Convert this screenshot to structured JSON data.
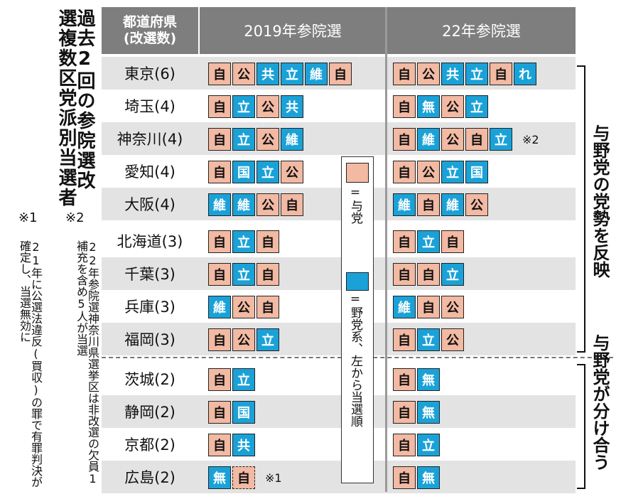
{
  "title": "過去2回の参院選改選複数区党派別当選者",
  "notes": {
    "n2_mark": "※2",
    "n2_text": "22年参院選神奈川県選挙区は非改選の欠員1補充を含め5人が当選",
    "n1_mark": "※1",
    "n1_text": "21年に公選法違反(買収)の罪で有罪判決が確定し、当選無効に"
  },
  "header": {
    "pref_line1": "都道府県",
    "pref_line2": "(改選数)",
    "col_2019": "2019年参院選",
    "col_2022": "22年参院選"
  },
  "legend": {
    "ruling_text": "=与党",
    "opposition_text": "=野党系、左から当選順"
  },
  "side_labels": {
    "group1": "与野党の党勢を反映",
    "group2": "与野党が分け合う"
  },
  "colors": {
    "ruling": "#f2b9a3",
    "opposition": "#1aa2d8",
    "header": "#7e7e7e"
  },
  "rows": [
    {
      "pref": "東京(6)",
      "r2019": [
        [
          "自",
          "r"
        ],
        [
          "公",
          "r"
        ],
        [
          "共",
          "o"
        ],
        [
          "立",
          "o"
        ],
        [
          "維",
          "o"
        ],
        [
          "自",
          "r"
        ]
      ],
      "r2022": [
        [
          "自",
          "r"
        ],
        [
          "公",
          "r"
        ],
        [
          "共",
          "o"
        ],
        [
          "立",
          "o"
        ],
        [
          "自",
          "r"
        ],
        [
          "れ",
          "o"
        ]
      ],
      "note": ""
    },
    {
      "pref": "埼玉(4)",
      "r2019": [
        [
          "自",
          "r"
        ],
        [
          "立",
          "o"
        ],
        [
          "公",
          "r"
        ],
        [
          "共",
          "o"
        ]
      ],
      "r2022": [
        [
          "自",
          "r"
        ],
        [
          "無",
          "o"
        ],
        [
          "公",
          "r"
        ],
        [
          "立",
          "o"
        ]
      ],
      "note": ""
    },
    {
      "pref": "神奈川(4)",
      "r2019": [
        [
          "自",
          "r"
        ],
        [
          "立",
          "o"
        ],
        [
          "公",
          "r"
        ],
        [
          "維",
          "o"
        ]
      ],
      "r2022": [
        [
          "自",
          "r"
        ],
        [
          "維",
          "o"
        ],
        [
          "公",
          "r"
        ],
        [
          "自",
          "r"
        ],
        [
          "立",
          "o"
        ]
      ],
      "note": "※2"
    },
    {
      "pref": "愛知(4)",
      "r2019": [
        [
          "自",
          "r"
        ],
        [
          "国",
          "o"
        ],
        [
          "立",
          "o"
        ],
        [
          "公",
          "r"
        ]
      ],
      "r2022": [
        [
          "自",
          "r"
        ],
        [
          "公",
          "r"
        ],
        [
          "立",
          "o"
        ],
        [
          "国",
          "o"
        ]
      ],
      "note": ""
    },
    {
      "pref": "大阪(4)",
      "r2019": [
        [
          "維",
          "o"
        ],
        [
          "維",
          "o"
        ],
        [
          "公",
          "r"
        ],
        [
          "自",
          "r"
        ]
      ],
      "r2022": [
        [
          "維",
          "o"
        ],
        [
          "自",
          "r"
        ],
        [
          "維",
          "o"
        ],
        [
          "公",
          "r"
        ]
      ],
      "note": ""
    },
    {
      "pref": "北海道(3)",
      "r2019": [
        [
          "自",
          "r"
        ],
        [
          "立",
          "o"
        ],
        [
          "自",
          "r"
        ]
      ],
      "r2022": [
        [
          "自",
          "r"
        ],
        [
          "立",
          "o"
        ],
        [
          "自",
          "r"
        ]
      ],
      "note": ""
    },
    {
      "pref": "千葉(3)",
      "r2019": [
        [
          "自",
          "r"
        ],
        [
          "立",
          "o"
        ],
        [
          "自",
          "r"
        ]
      ],
      "r2022": [
        [
          "自",
          "r"
        ],
        [
          "自",
          "r"
        ],
        [
          "立",
          "o"
        ]
      ],
      "note": ""
    },
    {
      "pref": "兵庫(3)",
      "r2019": [
        [
          "維",
          "o"
        ],
        [
          "公",
          "r"
        ],
        [
          "自",
          "r"
        ]
      ],
      "r2022": [
        [
          "維",
          "o"
        ],
        [
          "自",
          "r"
        ],
        [
          "公",
          "r"
        ]
      ],
      "note": ""
    },
    {
      "pref": "福岡(3)",
      "r2019": [
        [
          "自",
          "r"
        ],
        [
          "公",
          "r"
        ],
        [
          "立",
          "o"
        ]
      ],
      "r2022": [
        [
          "自",
          "r"
        ],
        [
          "立",
          "o"
        ],
        [
          "公",
          "r"
        ]
      ],
      "note": ""
    },
    {
      "pref": "茨城(2)",
      "r2019": [
        [
          "自",
          "r"
        ],
        [
          "立",
          "o"
        ]
      ],
      "r2022": [
        [
          "自",
          "r"
        ],
        [
          "無",
          "o"
        ]
      ],
      "note": ""
    },
    {
      "pref": "静岡(2)",
      "r2019": [
        [
          "自",
          "r"
        ],
        [
          "国",
          "o"
        ]
      ],
      "r2022": [
        [
          "自",
          "r"
        ],
        [
          "無",
          "o"
        ]
      ],
      "note": ""
    },
    {
      "pref": "京都(2)",
      "r2019": [
        [
          "自",
          "r"
        ],
        [
          "共",
          "o"
        ]
      ],
      "r2022": [
        [
          "自",
          "r"
        ],
        [
          "立",
          "o"
        ]
      ],
      "note": ""
    },
    {
      "pref": "広島(2)",
      "r2019": [
        [
          "無",
          "o"
        ],
        [
          "自",
          "rd"
        ]
      ],
      "r2022": [
        [
          "自",
          "r"
        ],
        [
          "無",
          "o"
        ]
      ],
      "note19": "※1"
    }
  ]
}
